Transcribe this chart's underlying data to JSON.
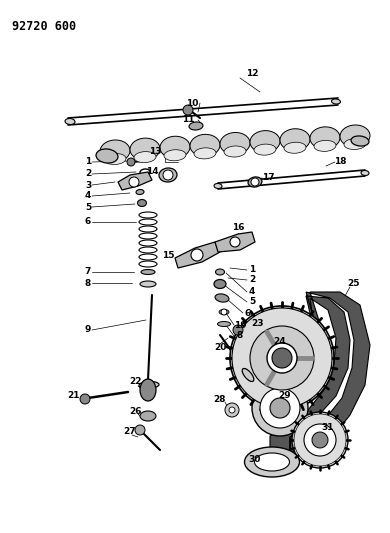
{
  "title_code": "92720 600",
  "bg": "#ffffff",
  "lc": "#000000",
  "fig_w": 3.9,
  "fig_h": 5.33,
  "dpi": 100,
  "lfs": 6.5
}
